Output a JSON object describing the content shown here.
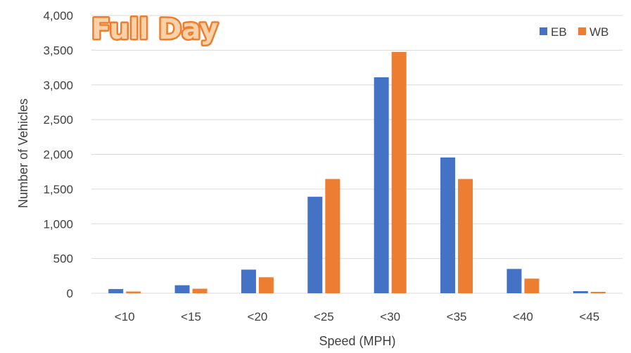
{
  "chart_data": {
    "type": "bar",
    "title": "Full Day",
    "xlabel": "Speed (MPH)",
    "ylabel": "Number of Vehicles",
    "categories": [
      "<10",
      "<15",
      "<20",
      "<25",
      "<30",
      "<35",
      "<40",
      "<45"
    ],
    "series": [
      {
        "name": "EB",
        "color": "#4472C4",
        "values": [
          60,
          115,
          340,
          1390,
          3110,
          1955,
          350,
          30
        ]
      },
      {
        "name": "WB",
        "color": "#ED7D31",
        "values": [
          25,
          65,
          230,
          1645,
          3475,
          1645,
          210,
          20
        ]
      }
    ],
    "ylim": [
      0,
      4000
    ],
    "yticks": [
      0,
      500,
      1000,
      1500,
      2000,
      2500,
      3000,
      3500,
      4000
    ],
    "ytick_labels": [
      "0",
      "500",
      "1,000",
      "1,500",
      "2,000",
      "2,500",
      "3,000",
      "3,500",
      "4,000"
    ],
    "grid": true,
    "legend_position": "top-right",
    "title_fill_color": "#FBD2A8",
    "title_outline_color": "#ED7D31",
    "gridline_color": "#D9D9D9"
  }
}
